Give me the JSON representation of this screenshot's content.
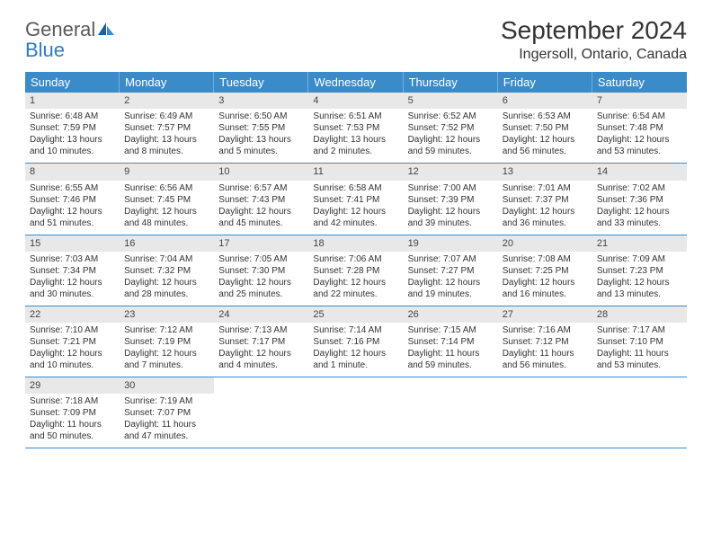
{
  "logo": {
    "text1": "General",
    "text2": "Blue",
    "text_color": "#5a5a5a",
    "blue_color": "#2f7bbf"
  },
  "header": {
    "month": "September 2024",
    "location": "Ingersoll, Ontario, Canada"
  },
  "colors": {
    "header_bg": "#3b8bc9",
    "daynum_bg": "#e8e8e8",
    "divider": "#3b8bc9"
  },
  "weekdays": [
    "Sunday",
    "Monday",
    "Tuesday",
    "Wednesday",
    "Thursday",
    "Friday",
    "Saturday"
  ],
  "weeks": [
    [
      {
        "num": "1",
        "sunrise": "Sunrise: 6:48 AM",
        "sunset": "Sunset: 7:59 PM",
        "daylight1": "Daylight: 13 hours",
        "daylight2": "and 10 minutes."
      },
      {
        "num": "2",
        "sunrise": "Sunrise: 6:49 AM",
        "sunset": "Sunset: 7:57 PM",
        "daylight1": "Daylight: 13 hours",
        "daylight2": "and 8 minutes."
      },
      {
        "num": "3",
        "sunrise": "Sunrise: 6:50 AM",
        "sunset": "Sunset: 7:55 PM",
        "daylight1": "Daylight: 13 hours",
        "daylight2": "and 5 minutes."
      },
      {
        "num": "4",
        "sunrise": "Sunrise: 6:51 AM",
        "sunset": "Sunset: 7:53 PM",
        "daylight1": "Daylight: 13 hours",
        "daylight2": "and 2 minutes."
      },
      {
        "num": "5",
        "sunrise": "Sunrise: 6:52 AM",
        "sunset": "Sunset: 7:52 PM",
        "daylight1": "Daylight: 12 hours",
        "daylight2": "and 59 minutes."
      },
      {
        "num": "6",
        "sunrise": "Sunrise: 6:53 AM",
        "sunset": "Sunset: 7:50 PM",
        "daylight1": "Daylight: 12 hours",
        "daylight2": "and 56 minutes."
      },
      {
        "num": "7",
        "sunrise": "Sunrise: 6:54 AM",
        "sunset": "Sunset: 7:48 PM",
        "daylight1": "Daylight: 12 hours",
        "daylight2": "and 53 minutes."
      }
    ],
    [
      {
        "num": "8",
        "sunrise": "Sunrise: 6:55 AM",
        "sunset": "Sunset: 7:46 PM",
        "daylight1": "Daylight: 12 hours",
        "daylight2": "and 51 minutes."
      },
      {
        "num": "9",
        "sunrise": "Sunrise: 6:56 AM",
        "sunset": "Sunset: 7:45 PM",
        "daylight1": "Daylight: 12 hours",
        "daylight2": "and 48 minutes."
      },
      {
        "num": "10",
        "sunrise": "Sunrise: 6:57 AM",
        "sunset": "Sunset: 7:43 PM",
        "daylight1": "Daylight: 12 hours",
        "daylight2": "and 45 minutes."
      },
      {
        "num": "11",
        "sunrise": "Sunrise: 6:58 AM",
        "sunset": "Sunset: 7:41 PM",
        "daylight1": "Daylight: 12 hours",
        "daylight2": "and 42 minutes."
      },
      {
        "num": "12",
        "sunrise": "Sunrise: 7:00 AM",
        "sunset": "Sunset: 7:39 PM",
        "daylight1": "Daylight: 12 hours",
        "daylight2": "and 39 minutes."
      },
      {
        "num": "13",
        "sunrise": "Sunrise: 7:01 AM",
        "sunset": "Sunset: 7:37 PM",
        "daylight1": "Daylight: 12 hours",
        "daylight2": "and 36 minutes."
      },
      {
        "num": "14",
        "sunrise": "Sunrise: 7:02 AM",
        "sunset": "Sunset: 7:36 PM",
        "daylight1": "Daylight: 12 hours",
        "daylight2": "and 33 minutes."
      }
    ],
    [
      {
        "num": "15",
        "sunrise": "Sunrise: 7:03 AM",
        "sunset": "Sunset: 7:34 PM",
        "daylight1": "Daylight: 12 hours",
        "daylight2": "and 30 minutes."
      },
      {
        "num": "16",
        "sunrise": "Sunrise: 7:04 AM",
        "sunset": "Sunset: 7:32 PM",
        "daylight1": "Daylight: 12 hours",
        "daylight2": "and 28 minutes."
      },
      {
        "num": "17",
        "sunrise": "Sunrise: 7:05 AM",
        "sunset": "Sunset: 7:30 PM",
        "daylight1": "Daylight: 12 hours",
        "daylight2": "and 25 minutes."
      },
      {
        "num": "18",
        "sunrise": "Sunrise: 7:06 AM",
        "sunset": "Sunset: 7:28 PM",
        "daylight1": "Daylight: 12 hours",
        "daylight2": "and 22 minutes."
      },
      {
        "num": "19",
        "sunrise": "Sunrise: 7:07 AM",
        "sunset": "Sunset: 7:27 PM",
        "daylight1": "Daylight: 12 hours",
        "daylight2": "and 19 minutes."
      },
      {
        "num": "20",
        "sunrise": "Sunrise: 7:08 AM",
        "sunset": "Sunset: 7:25 PM",
        "daylight1": "Daylight: 12 hours",
        "daylight2": "and 16 minutes."
      },
      {
        "num": "21",
        "sunrise": "Sunrise: 7:09 AM",
        "sunset": "Sunset: 7:23 PM",
        "daylight1": "Daylight: 12 hours",
        "daylight2": "and 13 minutes."
      }
    ],
    [
      {
        "num": "22",
        "sunrise": "Sunrise: 7:10 AM",
        "sunset": "Sunset: 7:21 PM",
        "daylight1": "Daylight: 12 hours",
        "daylight2": "and 10 minutes."
      },
      {
        "num": "23",
        "sunrise": "Sunrise: 7:12 AM",
        "sunset": "Sunset: 7:19 PM",
        "daylight1": "Daylight: 12 hours",
        "daylight2": "and 7 minutes."
      },
      {
        "num": "24",
        "sunrise": "Sunrise: 7:13 AM",
        "sunset": "Sunset: 7:17 PM",
        "daylight1": "Daylight: 12 hours",
        "daylight2": "and 4 minutes."
      },
      {
        "num": "25",
        "sunrise": "Sunrise: 7:14 AM",
        "sunset": "Sunset: 7:16 PM",
        "daylight1": "Daylight: 12 hours",
        "daylight2": "and 1 minute."
      },
      {
        "num": "26",
        "sunrise": "Sunrise: 7:15 AM",
        "sunset": "Sunset: 7:14 PM",
        "daylight1": "Daylight: 11 hours",
        "daylight2": "and 59 minutes."
      },
      {
        "num": "27",
        "sunrise": "Sunrise: 7:16 AM",
        "sunset": "Sunset: 7:12 PM",
        "daylight1": "Daylight: 11 hours",
        "daylight2": "and 56 minutes."
      },
      {
        "num": "28",
        "sunrise": "Sunrise: 7:17 AM",
        "sunset": "Sunset: 7:10 PM",
        "daylight1": "Daylight: 11 hours",
        "daylight2": "and 53 minutes."
      }
    ],
    [
      {
        "num": "29",
        "sunrise": "Sunrise: 7:18 AM",
        "sunset": "Sunset: 7:09 PM",
        "daylight1": "Daylight: 11 hours",
        "daylight2": "and 50 minutes."
      },
      {
        "num": "30",
        "sunrise": "Sunrise: 7:19 AM",
        "sunset": "Sunset: 7:07 PM",
        "daylight1": "Daylight: 11 hours",
        "daylight2": "and 47 minutes."
      },
      null,
      null,
      null,
      null,
      null
    ]
  ]
}
